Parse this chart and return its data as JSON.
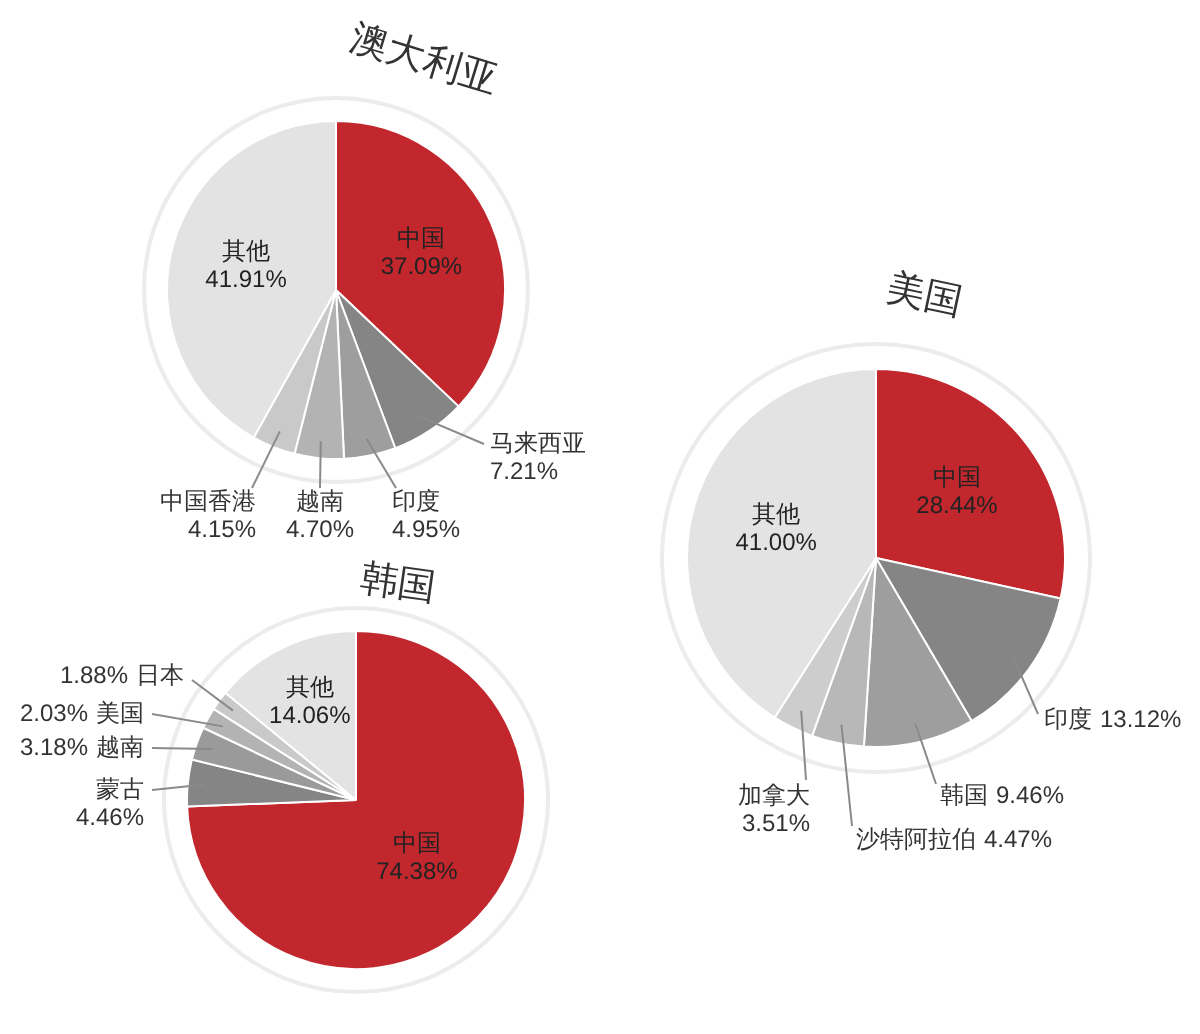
{
  "chart_data": [
    {
      "type": "pie",
      "title": "澳大利亚",
      "categories": [
        "中国",
        "马来西亚",
        "印度",
        "越南",
        "中国香港",
        "其他"
      ],
      "values": [
        37.09,
        7.21,
        4.95,
        4.7,
        4.15,
        41.91
      ],
      "colors": [
        "#c1272d",
        "#858585",
        "#9e9e9e",
        "#b3b3b3",
        "#c9c9c9",
        "#e3e3e3"
      ],
      "value_labels": [
        "37.09%",
        "7.21%",
        "4.95%",
        "4.70%",
        "4.15%",
        "41.91%"
      ],
      "legend": false
    },
    {
      "type": "pie",
      "title": "美国",
      "categories": [
        "中国",
        "印度",
        "韩国",
        "沙特阿拉伯",
        "加拿大",
        "其他"
      ],
      "values": [
        28.44,
        13.12,
        9.46,
        4.47,
        3.51,
        41.0
      ],
      "colors": [
        "#c1272d",
        "#858585",
        "#9e9e9e",
        "#b8b8b8",
        "#cdcdcd",
        "#e3e3e3"
      ],
      "value_labels": [
        "28.44%",
        "13.12%",
        "9.46%",
        "4.47%",
        "3.51%",
        "41.00%"
      ],
      "legend": false
    },
    {
      "type": "pie",
      "title": "韩国",
      "categories": [
        "中国",
        "蒙古",
        "越南",
        "美国",
        "日本",
        "其他"
      ],
      "values": [
        74.38,
        4.46,
        3.18,
        2.03,
        1.88,
        14.06
      ],
      "colors": [
        "#c1272d",
        "#858585",
        "#9a9a9a",
        "#b3b3b3",
        "#c9c9c9",
        "#e3e3e3"
      ],
      "value_labels": [
        "74.38%",
        "4.46%",
        "3.18%",
        "2.03%",
        "1.88%",
        "14.06%"
      ],
      "legend": false
    }
  ]
}
